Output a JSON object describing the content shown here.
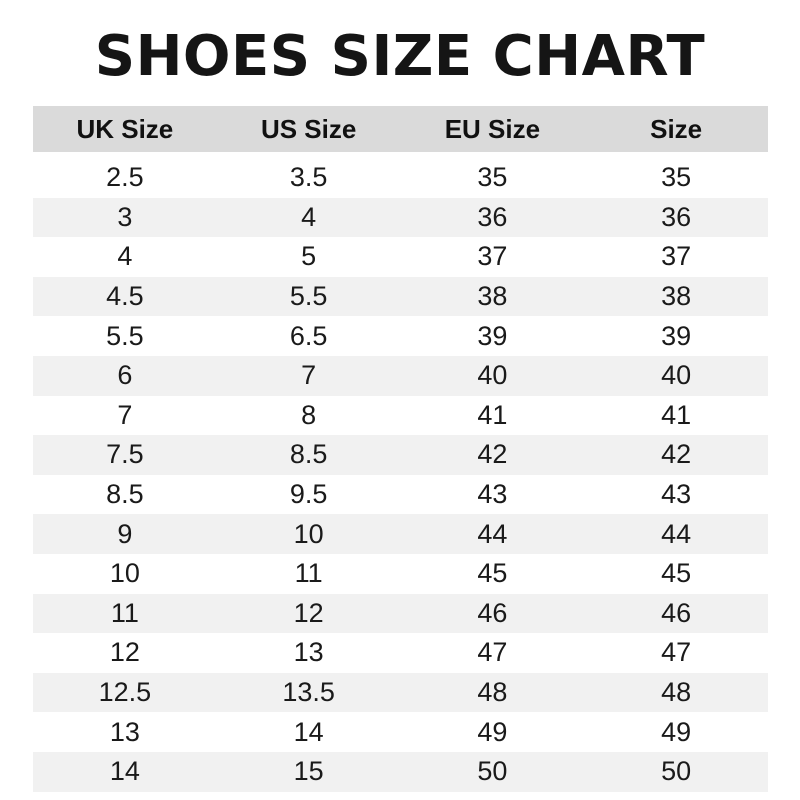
{
  "title": "SHOES SIZE CHART",
  "table": {
    "headers": [
      "UK Size",
      "US Size",
      "EU Size",
      "Size"
    ],
    "rows": [
      [
        "2.5",
        "3.5",
        "35",
        "35"
      ],
      [
        "3",
        "4",
        "36",
        "36"
      ],
      [
        "4",
        "5",
        "37",
        "37"
      ],
      [
        "4.5",
        "5.5",
        "38",
        "38"
      ],
      [
        "5.5",
        "6.5",
        "39",
        "39"
      ],
      [
        "6",
        "7",
        "40",
        "40"
      ],
      [
        "7",
        "8",
        "41",
        "41"
      ],
      [
        "7.5",
        "8.5",
        "42",
        "42"
      ],
      [
        "8.5",
        "9.5",
        "43",
        "43"
      ],
      [
        "9",
        "10",
        "44",
        "44"
      ],
      [
        "10",
        "11",
        "45",
        "45"
      ],
      [
        "11",
        "12",
        "46",
        "46"
      ],
      [
        "12",
        "13",
        "47",
        "47"
      ],
      [
        "12.5",
        "13.5",
        "48",
        "48"
      ],
      [
        "13",
        "14",
        "49",
        "49"
      ],
      [
        "14",
        "15",
        "50",
        "50"
      ]
    ],
    "colors": {
      "header_bg": "#dadada",
      "alt_row_bg": "#f1f1f1"
    }
  }
}
